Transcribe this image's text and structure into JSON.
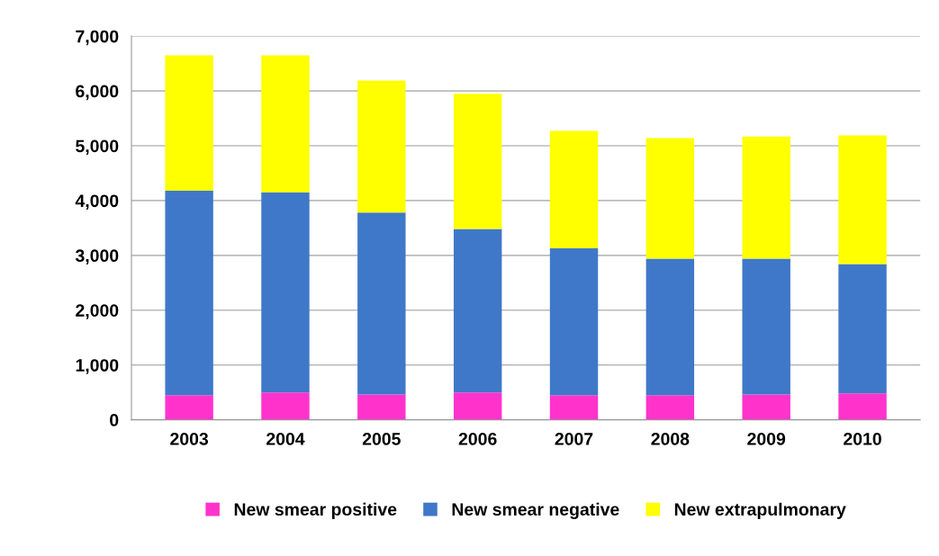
{
  "chart_data": {
    "type": "bar",
    "stacked": true,
    "categories": [
      "2003",
      "2004",
      "2005",
      "2006",
      "2007",
      "2008",
      "2009",
      "2010"
    ],
    "series": [
      {
        "name": "New smear positive",
        "color": "#ff33cc",
        "values": [
          450,
          500,
          460,
          500,
          450,
          450,
          460,
          480
        ]
      },
      {
        "name": "New smear negative",
        "color": "#3f78c8",
        "values": [
          3730,
          3650,
          3320,
          2980,
          2680,
          2490,
          2480,
          2360
        ]
      },
      {
        "name": "New extrapulmonary",
        "color": "#ffff00",
        "values": [
          2470,
          2500,
          2410,
          2470,
          2140,
          2200,
          2230,
          2350
        ]
      }
    ],
    "ylim": [
      0,
      7000
    ],
    "yticks": [
      {
        "value": 0,
        "label": "0"
      },
      {
        "value": 1000,
        "label": "1,000"
      },
      {
        "value": 2000,
        "label": "2,000"
      },
      {
        "value": 3000,
        "label": "3,000"
      },
      {
        "value": 4000,
        "label": "4,000"
      },
      {
        "value": 5000,
        "label": "5,000"
      },
      {
        "value": 6000,
        "label": "6,000"
      },
      {
        "value": 7000,
        "label": "7,000"
      }
    ],
    "grid": "y",
    "legend": "bottom"
  }
}
